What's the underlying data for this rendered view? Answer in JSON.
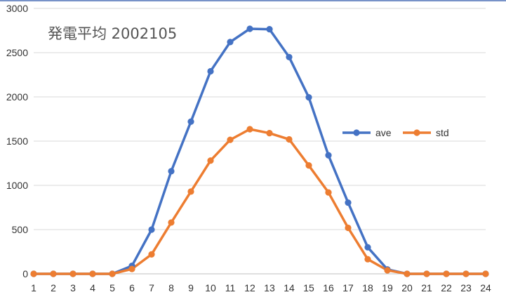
{
  "chart_data": {
    "type": "line",
    "title": "発電平均 2002105",
    "x": [
      "1",
      "2",
      "3",
      "4",
      "5",
      "6",
      "7",
      "8",
      "9",
      "10",
      "11",
      "12",
      "13",
      "14",
      "15",
      "16",
      "17",
      "18",
      "19",
      "20",
      "21",
      "22",
      "23",
      "24"
    ],
    "ylim": [
      0,
      3000
    ],
    "yticks": [
      0,
      500,
      1000,
      1500,
      2000,
      2500,
      3000
    ],
    "grid": true,
    "legend_position": "right",
    "series": [
      {
        "name": "ave",
        "color": "#4472c4",
        "values": [
          0,
          0,
          0,
          0,
          0,
          90,
          500,
          1160,
          1720,
          2290,
          2620,
          2770,
          2765,
          2450,
          1995,
          1340,
          805,
          300,
          50,
          0,
          0,
          0,
          0,
          0
        ]
      },
      {
        "name": "std",
        "color": "#ed7d31",
        "values": [
          0,
          0,
          0,
          0,
          0,
          55,
          220,
          580,
          930,
          1280,
          1515,
          1635,
          1590,
          1520,
          1225,
          920,
          520,
          165,
          40,
          0,
          0,
          0,
          0,
          0
        ]
      }
    ]
  }
}
